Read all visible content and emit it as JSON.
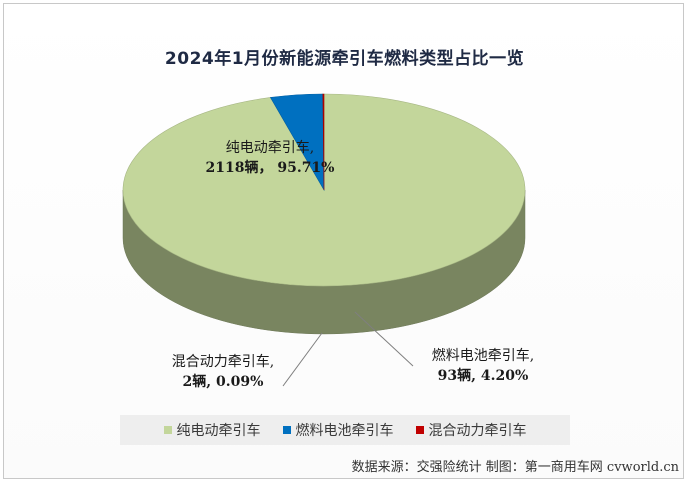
{
  "chart_data": {
    "type": "pie",
    "title": "2024年1月份新能源牵引车燃料类型占比一览",
    "slices": [
      {
        "name": "纯电动牵引车",
        "units": "2118辆",
        "percent_label": "95.71%",
        "value": 95.71,
        "color": "#c3d69b"
      },
      {
        "name": "燃料电池牵引车",
        "units": "93辆",
        "percent_label": "4.20%",
        "value": 4.2,
        "color": "#0070c0"
      },
      {
        "name": "混合动力牵引车",
        "units": "2辆",
        "percent_label": "0.09%",
        "value": 0.09,
        "color": "#c00000"
      }
    ],
    "data_labels": [
      {
        "line1": "纯电动牵引车,",
        "line2": "2118辆， 95.71%"
      },
      {
        "line1": "燃料电池牵引车,",
        "line2": "93辆, 4.20%"
      },
      {
        "line1": "混合动力牵引车,",
        "line2": "2辆, 0.09%"
      }
    ],
    "legend": [
      "纯电动牵引车",
      "燃料电池牵引车",
      "混合动力牵引车"
    ],
    "legend_position": "bottom"
  },
  "source": "数据来源：交强险统计  制图：第一商用车网 cvworld.cn"
}
